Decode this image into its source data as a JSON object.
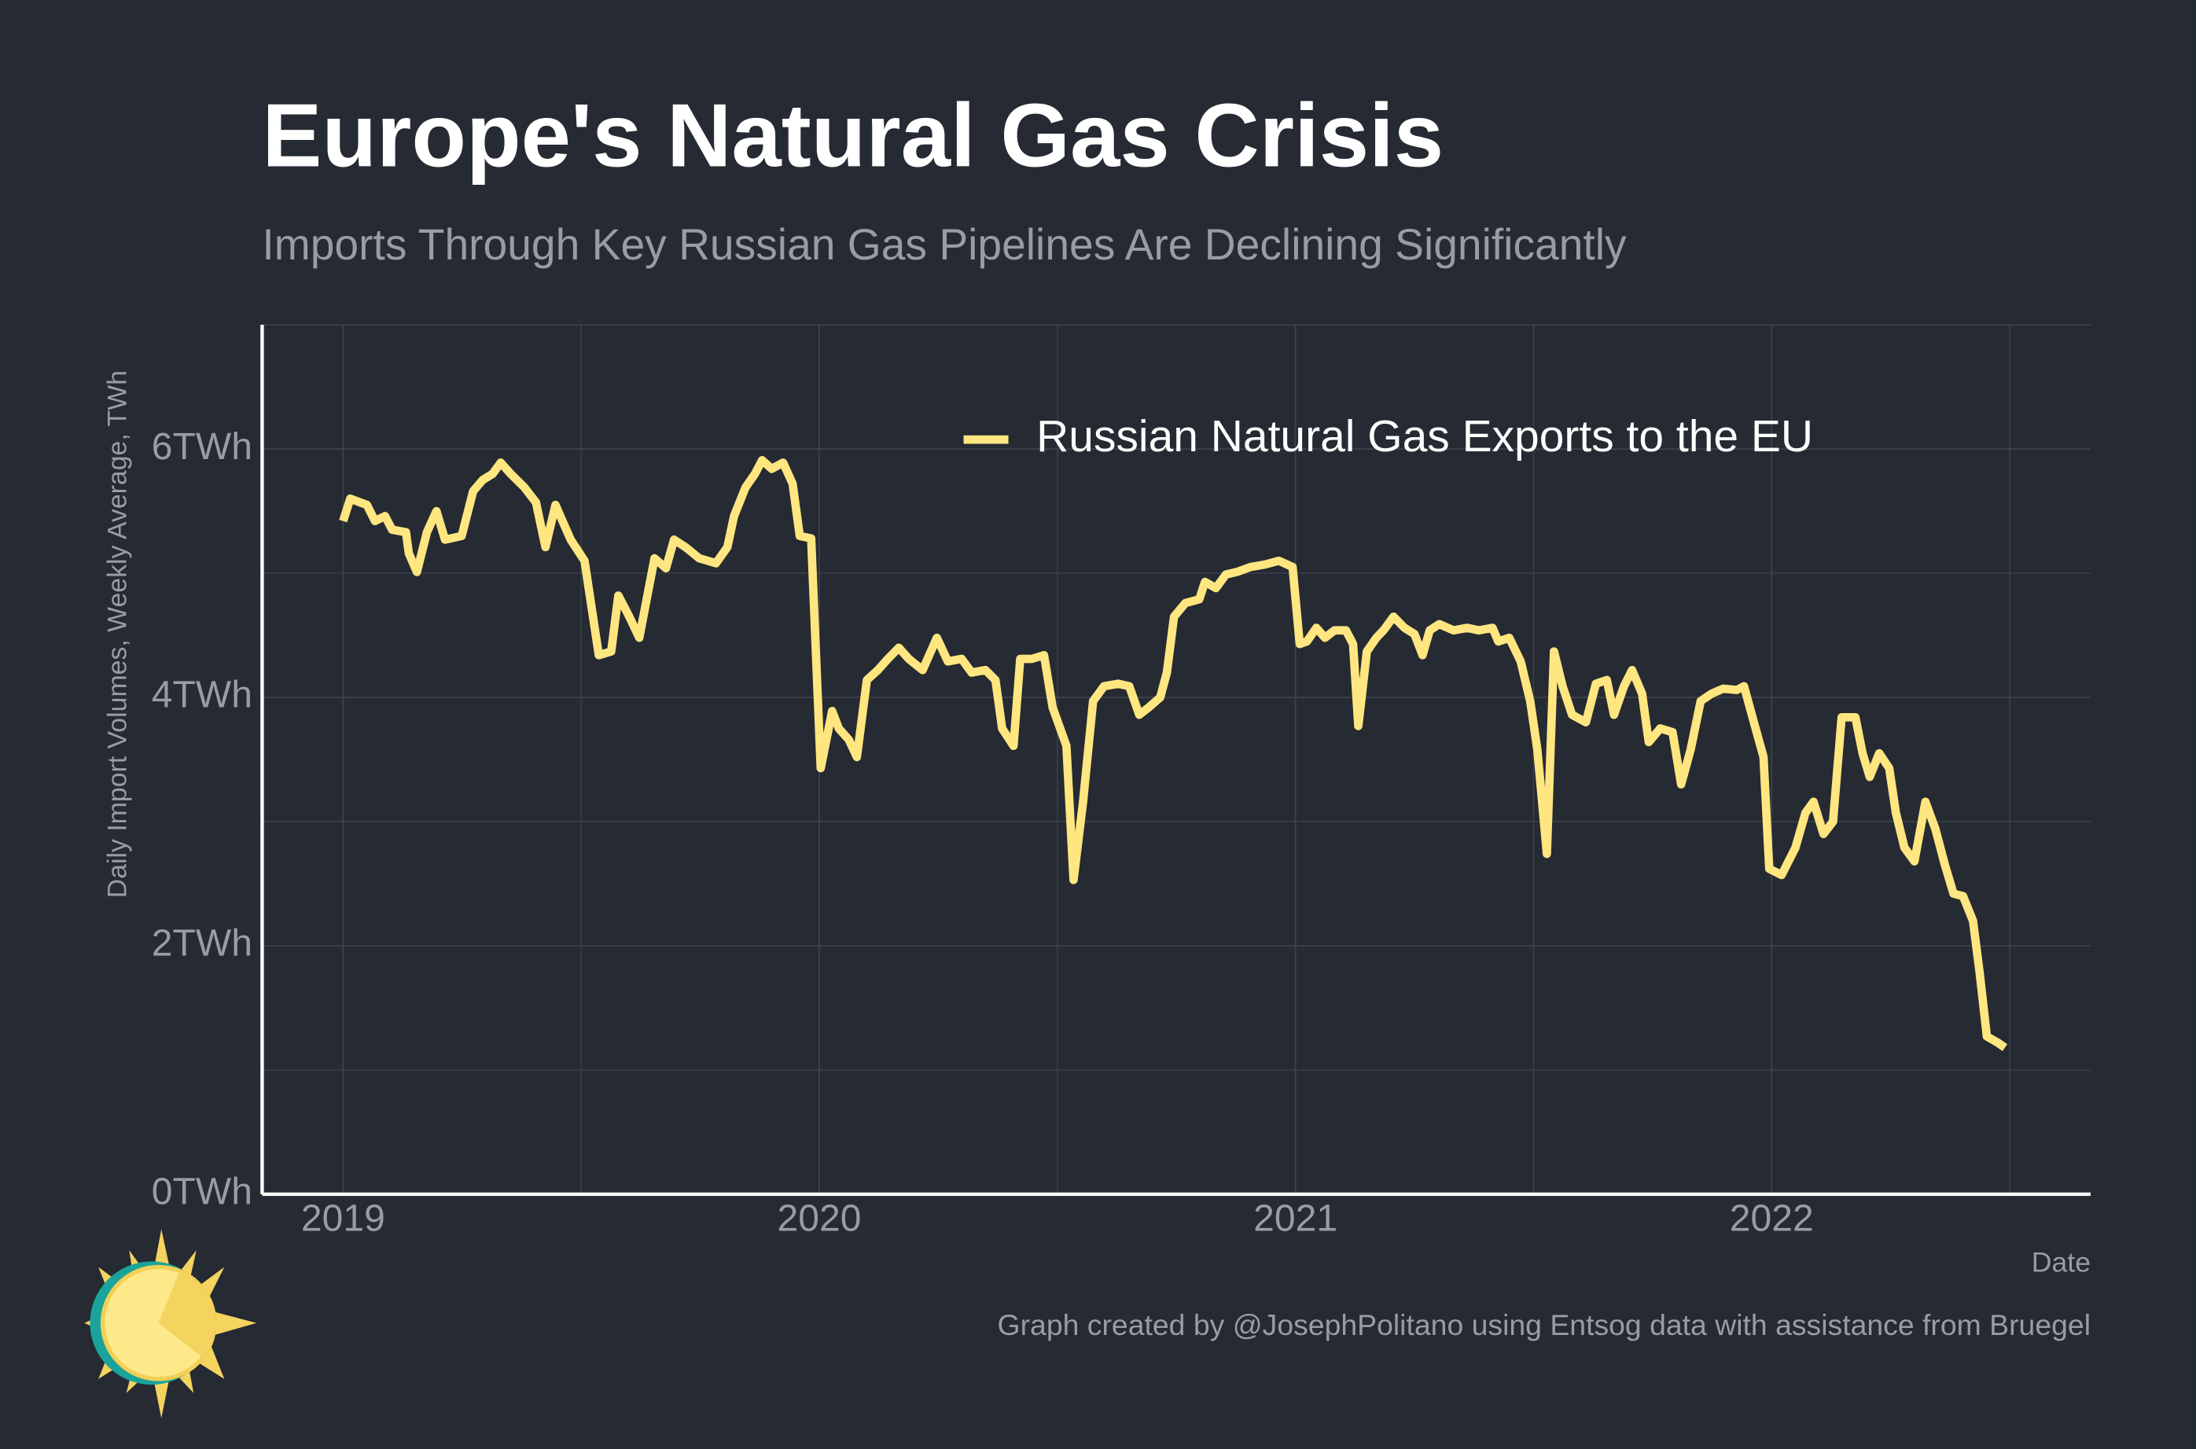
{
  "chart_data": {
    "type": "line",
    "title": "Europe's Natural Gas Crisis",
    "subtitle": "Imports Through Key Russian Gas Pipelines Are Declining Significantly",
    "y_label": "Daily Import Volumes, Weekly Average, TWh",
    "x_label": "Date",
    "caption": "Graph created by @JosephPolitano using Entsog data with assistance from Bruegel",
    "x": [
      2019.0,
      2019.015,
      2019.05,
      2019.067,
      2019.088,
      2019.103,
      2019.132,
      2019.138,
      2019.155,
      2019.176,
      2019.196,
      2019.214,
      2019.249,
      2019.273,
      2019.293,
      2019.314,
      2019.331,
      2019.352,
      2019.381,
      2019.405,
      2019.425,
      2019.446,
      2019.463,
      2019.478,
      2019.507,
      2019.537,
      2019.563,
      2019.578,
      2019.601,
      2019.622,
      2019.636,
      2019.654,
      2019.678,
      2019.695,
      2019.719,
      2019.748,
      2019.783,
      2019.807,
      2019.821,
      2019.845,
      2019.865,
      2019.88,
      2019.9,
      2019.924,
      2019.944,
      2019.959,
      2019.983,
      2020.003,
      2020.027,
      2020.041,
      2020.062,
      2020.079,
      2020.1,
      2020.123,
      2020.144,
      2020.167,
      2020.188,
      2020.217,
      2020.247,
      2020.27,
      2020.299,
      2020.32,
      2020.349,
      2020.37,
      2020.384,
      2020.408,
      2020.422,
      2020.446,
      2020.472,
      2020.49,
      2020.519,
      2020.534,
      2020.554,
      2020.575,
      2020.598,
      2020.628,
      2020.651,
      2020.672,
      2020.692,
      2020.716,
      2020.73,
      2020.745,
      2020.769,
      2020.798,
      2020.81,
      2020.833,
      2020.854,
      2020.877,
      2020.906,
      2020.936,
      2020.965,
      2020.994,
      2021.009,
      2021.024,
      2021.044,
      2021.062,
      2021.082,
      2021.106,
      2021.121,
      2021.132,
      2021.15,
      2021.17,
      2021.185,
      2021.206,
      2021.229,
      2021.25,
      2021.267,
      2021.282,
      2021.302,
      2021.332,
      2021.361,
      2021.385,
      2021.414,
      2021.426,
      2021.449,
      2021.473,
      2021.493,
      2021.508,
      2021.528,
      2021.543,
      2021.561,
      2021.581,
      2021.61,
      2021.631,
      2021.654,
      2021.669,
      2021.69,
      2021.707,
      2021.728,
      2021.742,
      2021.766,
      2021.792,
      2021.81,
      2021.83,
      2021.851,
      2021.874,
      2021.898,
      2021.927,
      2021.942,
      2021.962,
      2021.983,
      2021.995,
      2022.021,
      2022.05,
      2022.071,
      2022.088,
      2022.109,
      2022.129,
      2022.147,
      2022.176,
      2022.191,
      2022.206,
      2022.226,
      2022.247,
      2022.261,
      2022.279,
      2022.3,
      2022.323,
      2022.344,
      2022.364,
      2022.382,
      2022.402,
      2022.423,
      2022.437,
      2022.452,
      2022.475,
      2022.49
    ],
    "series": [
      {
        "name": "Russian Natural Gas Exports to the EU",
        "color": "#ffe680",
        "values": [
          5.42,
          5.6,
          5.55,
          5.42,
          5.46,
          5.35,
          5.33,
          5.16,
          5.01,
          5.33,
          5.5,
          5.27,
          5.3,
          5.66,
          5.75,
          5.8,
          5.89,
          5.8,
          5.69,
          5.57,
          5.21,
          5.55,
          5.4,
          5.27,
          5.1,
          4.34,
          4.37,
          4.82,
          4.65,
          4.48,
          4.76,
          5.12,
          5.04,
          5.27,
          5.21,
          5.12,
          5.08,
          5.21,
          5.46,
          5.69,
          5.8,
          5.91,
          5.84,
          5.89,
          5.72,
          5.3,
          5.28,
          3.43,
          3.89,
          3.75,
          3.66,
          3.52,
          4.14,
          4.22,
          4.31,
          4.4,
          4.31,
          4.22,
          4.48,
          4.29,
          4.31,
          4.2,
          4.22,
          4.14,
          3.75,
          3.61,
          4.31,
          4.31,
          4.34,
          3.92,
          3.61,
          2.53,
          3.16,
          3.97,
          4.09,
          4.11,
          4.09,
          3.86,
          3.92,
          4.0,
          4.2,
          4.65,
          4.76,
          4.79,
          4.93,
          4.88,
          4.99,
          5.01,
          5.05,
          5.07,
          5.1,
          5.05,
          4.43,
          4.45,
          4.56,
          4.48,
          4.54,
          4.54,
          4.43,
          3.77,
          4.37,
          4.48,
          4.54,
          4.65,
          4.56,
          4.51,
          4.34,
          4.54,
          4.59,
          4.54,
          4.56,
          4.54,
          4.56,
          4.45,
          4.48,
          4.29,
          3.97,
          3.58,
          2.74,
          4.37,
          4.09,
          3.86,
          3.8,
          4.11,
          4.14,
          3.86,
          4.09,
          4.22,
          4.03,
          3.64,
          3.75,
          3.72,
          3.3,
          3.58,
          3.97,
          4.03,
          4.07,
          4.06,
          4.09,
          3.81,
          3.52,
          2.62,
          2.57,
          2.79,
          3.07,
          3.16,
          2.9,
          3.0,
          3.84,
          3.84,
          3.55,
          3.36,
          3.55,
          3.43,
          3.07,
          2.79,
          2.68,
          3.16,
          2.94,
          2.65,
          2.42,
          2.4,
          2.2,
          1.78,
          1.27,
          1.22,
          1.18
        ]
      }
    ],
    "xlim": [
      2018.83,
      2022.67
    ],
    "xticks": [
      2019,
      2020,
      2021,
      2022
    ],
    "ylim": [
      0,
      7
    ],
    "yticks": [
      {
        "value": 0,
        "label": "0TWh"
      },
      {
        "value": 2,
        "label": "2TWh"
      },
      {
        "value": 4,
        "label": "4TWh"
      },
      {
        "value": 6,
        "label": "6TWh"
      }
    ],
    "grid": true,
    "legend": "top"
  }
}
